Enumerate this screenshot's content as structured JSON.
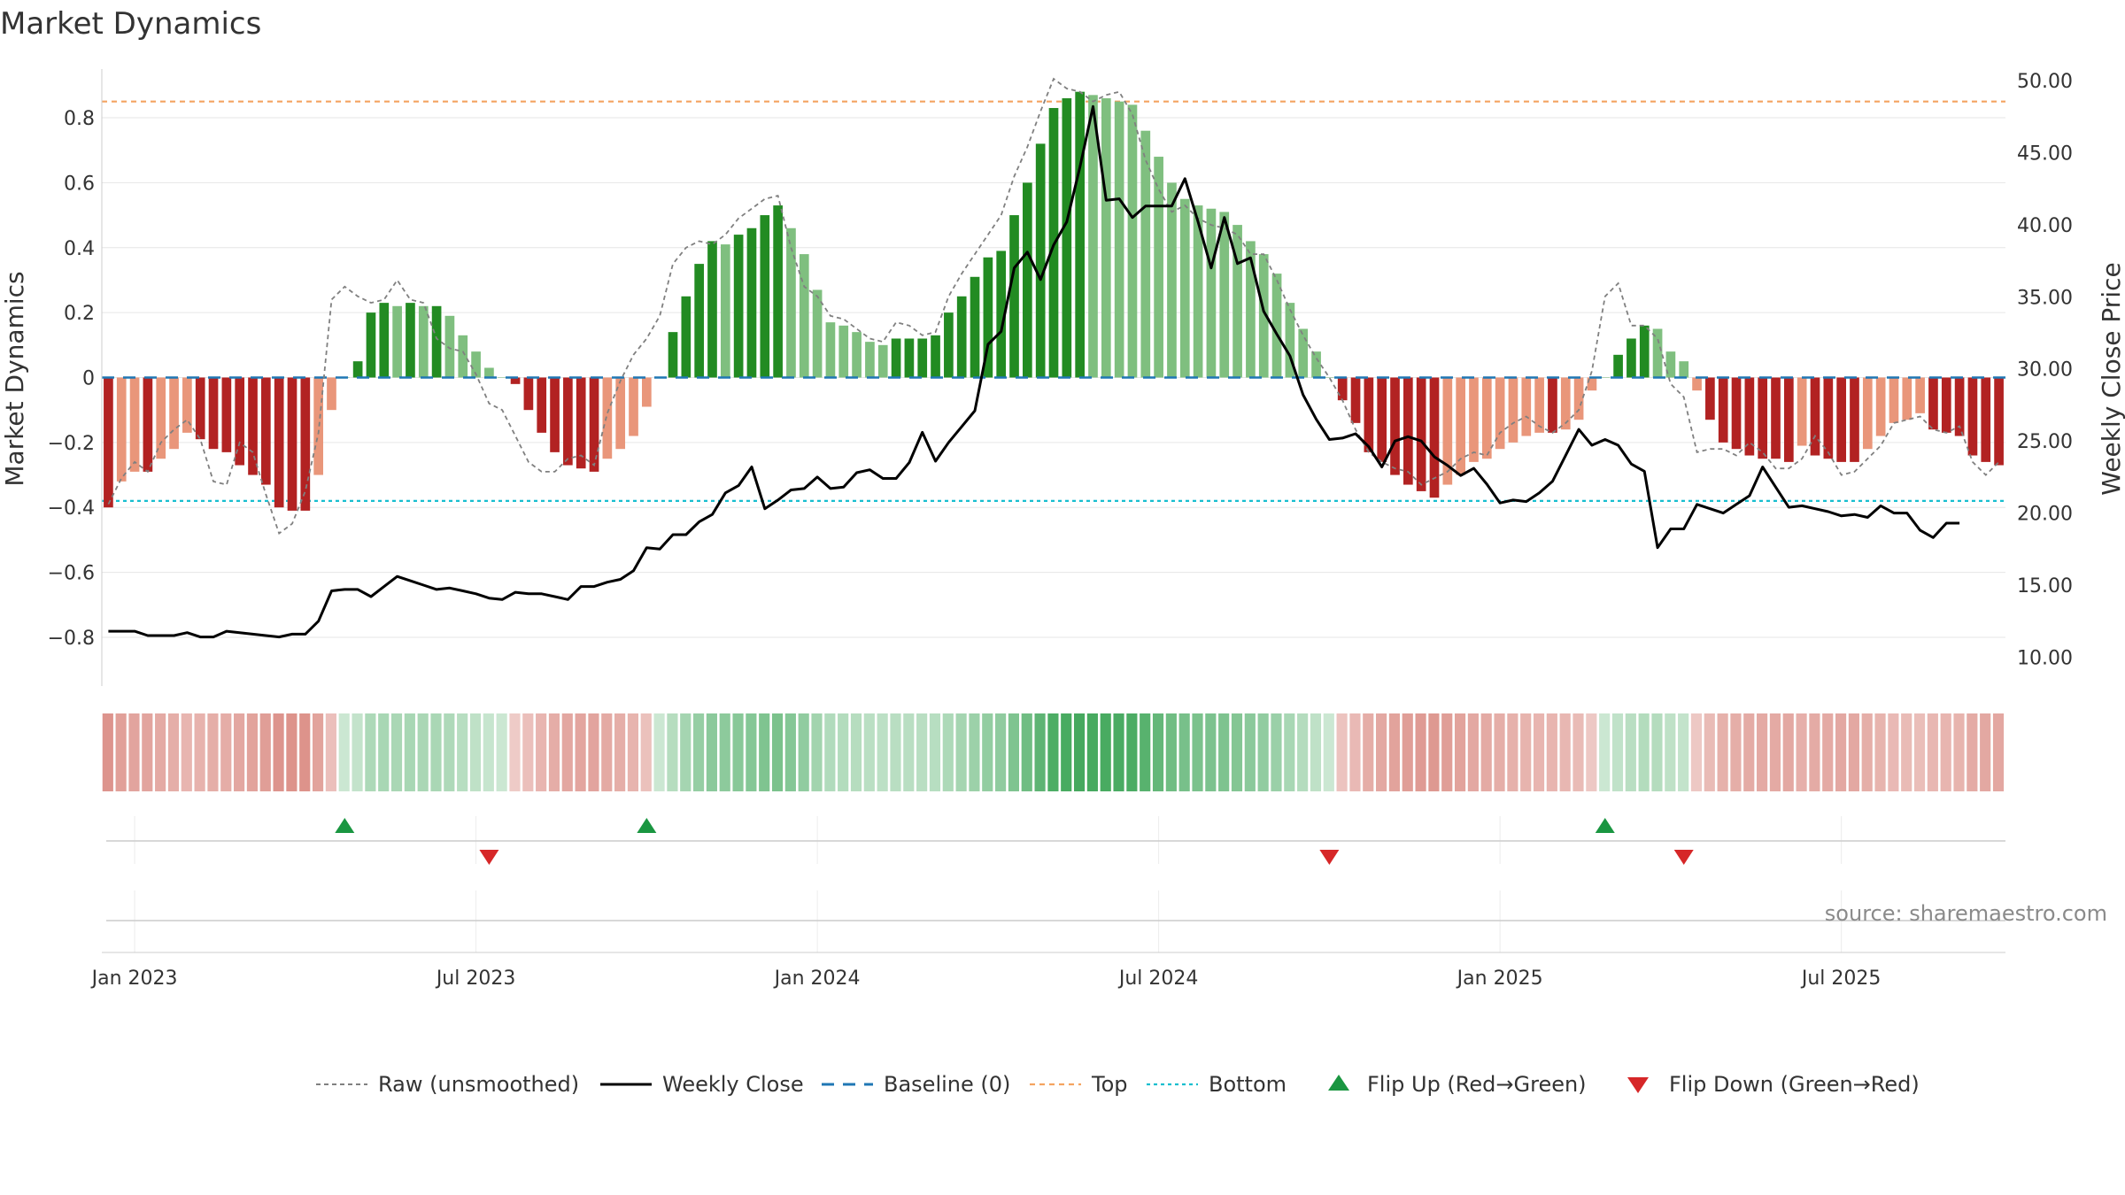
{
  "chart_data": {
    "type": "bar",
    "title": "Market Dynamics",
    "ylabel_left": "Market Dynamics",
    "ylabel_right": "Weekly Close Price",
    "ylim_left": [
      -0.95,
      0.95
    ],
    "ylim_right": [
      8.0,
      50.8
    ],
    "left_ticks": [
      "0.8",
      "0.6",
      "0.4",
      "0.2",
      "0",
      "−0.2",
      "−0.4",
      "−0.6",
      "−0.8"
    ],
    "left_tick_values": [
      0.8,
      0.6,
      0.4,
      0.2,
      0,
      -0.2,
      -0.4,
      -0.6,
      -0.8
    ],
    "right_ticks": [
      "50.00",
      "45.00",
      "40.00",
      "35.00",
      "30.00",
      "25.00",
      "20.00",
      "15.00",
      "10.00"
    ],
    "right_tick_values": [
      50,
      45,
      40,
      35,
      30,
      25,
      20,
      15,
      10
    ],
    "x_ticks": [
      "Jan 2023",
      "Jul 2023",
      "Jan 2024",
      "Jul 2024",
      "Jan 2025",
      "Jul 2025"
    ],
    "x_tick_weeks": [
      2,
      28,
      54,
      80,
      106,
      132
    ],
    "start_label": "Jan 2023",
    "top_line": 0.85,
    "bottom_line": -0.38,
    "baseline": 0,
    "grid": true,
    "legend_position": "bottom-center",
    "source": "source: sharemaestro.com",
    "colors": {
      "strong_green": "#228B22",
      "weak_green": "#7FBF7F",
      "strong_red": "#B22222",
      "weak_red": "#E9967A",
      "raw_line": "#808080",
      "close_line": "#000000",
      "baseline": "#1F77B4",
      "top": "#F4A460",
      "bottom": "#17BECF",
      "flip_up": "#1A9641",
      "flip_down": "#D62728"
    },
    "legend": [
      {
        "key": "raw",
        "label": "Raw (unsmoothed)"
      },
      {
        "key": "close",
        "label": "Weekly Close"
      },
      {
        "key": "baseline",
        "label": "Baseline (0)"
      },
      {
        "key": "top",
        "label": "Top"
      },
      {
        "key": "bottom",
        "label": "Bottom"
      },
      {
        "key": "flip_up",
        "label": "Flip Up (Red→Green)"
      },
      {
        "key": "flip_down",
        "label": "Flip Down (Green→Red)"
      }
    ],
    "flip_up_weeks": [
      18,
      41,
      114
    ],
    "flip_down_weeks": [
      29,
      93,
      120
    ],
    "dynamics": [
      -0.4,
      -0.32,
      -0.29,
      -0.29,
      -0.25,
      -0.22,
      -0.17,
      -0.19,
      -0.22,
      -0.23,
      -0.27,
      -0.3,
      -0.33,
      -0.4,
      -0.41,
      -0.41,
      -0.3,
      -0.1,
      0,
      0.05,
      0.2,
      0.23,
      0.22,
      0.23,
      0.22,
      0.22,
      0.19,
      0.13,
      0.08,
      0.03,
      0,
      -0.02,
      -0.1,
      -0.17,
      -0.23,
      -0.27,
      -0.28,
      -0.29,
      -0.25,
      -0.22,
      -0.18,
      -0.09,
      0,
      0.14,
      0.25,
      0.35,
      0.42,
      0.41,
      0.44,
      0.46,
      0.5,
      0.53,
      0.46,
      0.38,
      0.27,
      0.17,
      0.16,
      0.14,
      0.11,
      0.1,
      0.12,
      0.12,
      0.12,
      0.13,
      0.2,
      0.25,
      0.31,
      0.37,
      0.39,
      0.5,
      0.6,
      0.72,
      0.83,
      0.86,
      0.88,
      0.87,
      0.86,
      0.85,
      0.84,
      0.76,
      0.68,
      0.6,
      0.55,
      0.53,
      0.52,
      0.51,
      0.47,
      0.42,
      0.38,
      0.32,
      0.23,
      0.15,
      0.08,
      0,
      -0.07,
      -0.14,
      -0.23,
      -0.26,
      -0.3,
      -0.33,
      -0.35,
      -0.37,
      -0.33,
      -0.3,
      -0.26,
      -0.25,
      -0.22,
      -0.2,
      -0.18,
      -0.17,
      -0.17,
      -0.16,
      -0.13,
      -0.04,
      0,
      0.07,
      0.12,
      0.16,
      0.15,
      0.08,
      0.05,
      -0.04,
      -0.13,
      -0.2,
      -0.22,
      -0.24,
      -0.25,
      -0.25,
      -0.26,
      -0.21,
      -0.24,
      -0.25,
      -0.26,
      -0.26,
      -0.22,
      -0.18,
      -0.14,
      -0.13,
      -0.11,
      -0.16,
      -0.17,
      -0.18,
      -0.24,
      -0.26,
      -0.27
    ],
    "raw": [
      -0.39,
      -0.31,
      -0.26,
      -0.29,
      -0.2,
      -0.16,
      -0.13,
      -0.19,
      -0.32,
      -0.33,
      -0.2,
      -0.23,
      -0.36,
      -0.48,
      -0.45,
      -0.35,
      -0.17,
      0.24,
      0.28,
      0.25,
      0.23,
      0.24,
      0.3,
      0.24,
      0.23,
      0.12,
      0.09,
      0.08,
      0.01,
      -0.08,
      -0.1,
      -0.18,
      -0.26,
      -0.29,
      -0.29,
      -0.25,
      -0.24,
      -0.27,
      -0.11,
      -0.01,
      0.07,
      0.12,
      0.19,
      0.35,
      0.4,
      0.42,
      0.41,
      0.44,
      0.49,
      0.52,
      0.55,
      0.56,
      0.4,
      0.28,
      0.25,
      0.19,
      0.18,
      0.15,
      0.12,
      0.11,
      0.17,
      0.16,
      0.13,
      0.14,
      0.25,
      0.32,
      0.38,
      0.44,
      0.5,
      0.62,
      0.71,
      0.82,
      0.92,
      0.89,
      0.88,
      0.85,
      0.87,
      0.88,
      0.81,
      0.67,
      0.58,
      0.51,
      0.53,
      0.49,
      0.47,
      0.46,
      0.44,
      0.38,
      0.38,
      0.3,
      0.21,
      0.13,
      0.06,
      0,
      -0.07,
      -0.16,
      -0.23,
      -0.26,
      -0.28,
      -0.29,
      -0.33,
      -0.31,
      -0.29,
      -0.25,
      -0.23,
      -0.24,
      -0.17,
      -0.14,
      -0.12,
      -0.15,
      -0.17,
      -0.14,
      -0.1,
      0.02,
      0.25,
      0.29,
      0.16,
      0.16,
      0.12,
      -0.02,
      -0.06,
      -0.23,
      -0.22,
      -0.22,
      -0.24,
      -0.2,
      -0.23,
      -0.28,
      -0.28,
      -0.25,
      -0.18,
      -0.23,
      -0.3,
      -0.29,
      -0.25,
      -0.21,
      -0.14,
      -0.13,
      -0.12,
      -0.16,
      -0.17,
      -0.15,
      -0.26,
      -0.3,
      -0.26
    ],
    "close": [
      11.8,
      11.8,
      11.8,
      11.5,
      11.5,
      11.5,
      11.7,
      11.4,
      11.4,
      11.8,
      11.7,
      11.6,
      11.5,
      11.4,
      11.6,
      11.6,
      12.5,
      14.6,
      14.7,
      14.7,
      14.2,
      14.9,
      15.6,
      15.3,
      15.0,
      14.7,
      14.8,
      14.6,
      14.4,
      14.1,
      14.0,
      14.5,
      14.4,
      14.4,
      14.2,
      14.0,
      14.9,
      14.9,
      15.2,
      15.4,
      16.0,
      17.6,
      17.5,
      18.5,
      18.5,
      19.4,
      19.9,
      21.4,
      21.9,
      23.2,
      20.3,
      20.9,
      21.6,
      21.7,
      22.5,
      21.7,
      21.8,
      22.8,
      23.0,
      22.4,
      22.4,
      23.5,
      25.6,
      23.6,
      24.9,
      26.0,
      27.1,
      31.7,
      32.6,
      37.0,
      38.1,
      36.2,
      38.6,
      40.2,
      44.0,
      48.2,
      41.7,
      41.8,
      40.5,
      41.3,
      41.3,
      41.3,
      43.2,
      40.2,
      37.0,
      40.5,
      37.3,
      37.7,
      34.0,
      32.4,
      30.9,
      28.2,
      26.5,
      25.1,
      25.2,
      25.5,
      24.6,
      23.2,
      25.0,
      25.3,
      25.0,
      23.9,
      23.3,
      22.6,
      23.1,
      22.0,
      20.7,
      20.9,
      20.8,
      21.4,
      22.2,
      24.0,
      25.8,
      24.7,
      25.1,
      24.7,
      23.4,
      22.9,
      17.6,
      18.9,
      18.9,
      20.6,
      20.3,
      20.0,
      20.6,
      21.2,
      23.2,
      21.8,
      20.4,
      20.5,
      20.3,
      20.1,
      19.8,
      19.9,
      19.7,
      20.5,
      20.0,
      20.0,
      18.8,
      18.3,
      19.3,
      19.3
    ]
  }
}
